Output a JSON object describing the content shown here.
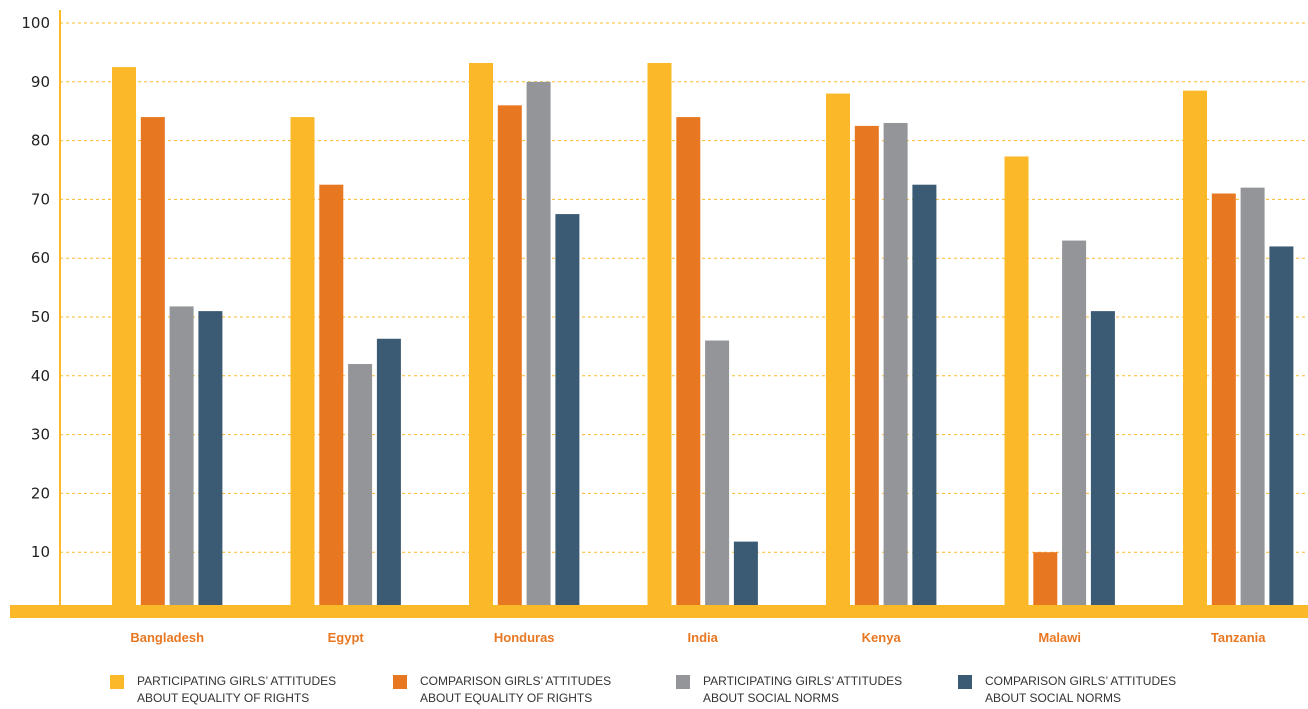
{
  "chart_data": {
    "type": "bar",
    "categories": [
      "Bangladesh",
      "Egypt",
      "Honduras",
      "India",
      "Kenya",
      "Malawi",
      "Tanzania"
    ],
    "series": [
      {
        "name": "PARTICIPATING GIRLS’ ATTITUDES ABOUT EQUALITY OF RIGHTS",
        "name_lines": [
          "PARTICIPATING GIRLS’ ATTITUDES",
          "ABOUT EQUALITY OF RIGHTS"
        ],
        "color": "#fbb829",
        "values": [
          92.5,
          84,
          93.2,
          93.2,
          88,
          77.3,
          88.5
        ]
      },
      {
        "name": "COMPARISON GIRLS’ ATTITUDES ABOUT EQUALITY OF RIGHTS",
        "name_lines": [
          "COMPARISON GIRLS’ ATTITUDES",
          "ABOUT EQUALITY OF RIGHTS"
        ],
        "color": "#e87722",
        "values": [
          84,
          72.5,
          86,
          84,
          82.5,
          10,
          71
        ]
      },
      {
        "name": "PARTICIPATING GIRLS’ ATTITUDES ABOUT SOCIAL NORMS",
        "name_lines": [
          "PARTICIPATING GIRLS’ ATTITUDES",
          "ABOUT SOCIAL NORMS"
        ],
        "color": "#939598",
        "values": [
          51.8,
          42,
          90,
          46,
          83,
          63,
          72
        ]
      },
      {
        "name": "COMPARISON GIRLS’ ATTITUDES ABOUT SOCIAL NORMS",
        "name_lines": [
          "COMPARISON GIRLS’ ATTITUDES",
          "ABOUT SOCIAL NORMS"
        ],
        "color": "#3b5a73",
        "values": [
          51,
          46.3,
          67.5,
          11.8,
          72.5,
          51,
          62
        ]
      }
    ],
    "yticks": [
      10,
      20,
      30,
      40,
      50,
      60,
      70,
      80,
      90,
      100
    ],
    "ylim": [
      0,
      100
    ],
    "grid": true,
    "grid_style": "dashed",
    "grid_color": "#fbb829",
    "axis_color": "#fbb829",
    "category_label_color": "#e87722",
    "legend_position": "bottom",
    "title": "",
    "xlabel": "",
    "ylabel": ""
  }
}
